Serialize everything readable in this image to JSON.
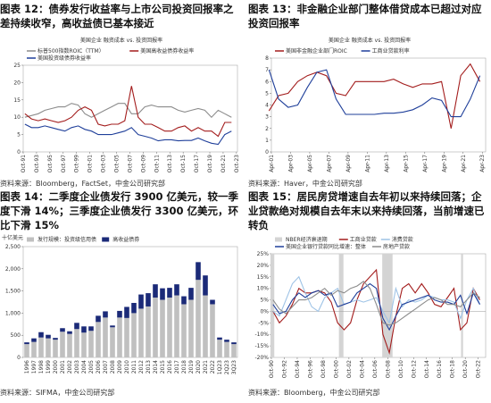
{
  "chart_data": [
    {
      "type": "line",
      "title": "图表 12：债券发行收益率与上市公司投资回报率之差持续收窄，高收益债已基本接近",
      "subtitle": "美国企业 融资成本 vs. 投资回报率",
      "source": "资料来源：Bloomberg，FactSet，中金公司研究部",
      "x": [
        1992,
        1993,
        1994,
        1995,
        1996,
        1997,
        1998,
        1999,
        2000,
        2001,
        2002,
        2003,
        2004,
        2005,
        2006,
        2007,
        2008,
        2009,
        2010,
        2011,
        2012,
        2013,
        2014,
        2015,
        2016,
        2017,
        2018,
        2019,
        2020,
        2021,
        2022,
        2023
      ],
      "xlim": [
        1991.75,
        2023.9
      ],
      "xticks": [
        {
          "value": 1991.75,
          "label": "Oct-91"
        },
        {
          "value": 1993.75,
          "label": "Oct-93"
        },
        {
          "value": 1995.75,
          "label": "Oct-95"
        },
        {
          "value": 1997.75,
          "label": "Oct-97"
        },
        {
          "value": 1999.75,
          "label": "Oct-99"
        },
        {
          "value": 2001.75,
          "label": "Oct-01"
        },
        {
          "value": 2003.75,
          "label": "Oct-03"
        },
        {
          "value": 2005.75,
          "label": "Oct-05"
        },
        {
          "value": 2007.75,
          "label": "Oct-07"
        },
        {
          "value": 2009.75,
          "label": "Oct-09"
        },
        {
          "value": 2011.75,
          "label": "Oct-11"
        },
        {
          "value": 2013.75,
          "label": "Oct-13"
        },
        {
          "value": 2015.75,
          "label": "Oct-15"
        },
        {
          "value": 2017.75,
          "label": "Oct-17"
        },
        {
          "value": 2019.75,
          "label": "Oct-19"
        },
        {
          "value": 2021.75,
          "label": "Oct-21"
        },
        {
          "value": 2023.75,
          "label": "Oct-23"
        }
      ],
      "ylim": [
        0,
        25
      ],
      "yticks": [
        0,
        5,
        10,
        15,
        20,
        25
      ],
      "series": [
        {
          "name": "标普500指数ROIC（TTM）",
          "color": "#8c8c8c",
          "values": [
            10,
            10.5,
            11,
            12,
            12.5,
            13,
            13,
            14,
            13.5,
            11,
            10,
            11,
            12,
            13,
            14,
            14,
            11,
            11,
            13,
            13.5,
            13,
            13,
            13,
            12,
            11.5,
            12,
            12.5,
            12,
            10,
            12,
            11,
            10
          ]
        },
        {
          "name": "美国高收益债券收益率",
          "color": "#a31c1c",
          "values": [
            11,
            9.5,
            9,
            9.5,
            9,
            8.5,
            9,
            10,
            12,
            13,
            12,
            8,
            7.5,
            8,
            8,
            9,
            19,
            10,
            8,
            8,
            7,
            6,
            6,
            7,
            7.5,
            6,
            7,
            6,
            6,
            4.5,
            8.5,
            8.5
          ]
        },
        {
          "name": "美国投资级债券收益率",
          "color": "#1f3f9a",
          "values": [
            8,
            7,
            7,
            7.5,
            7,
            6.5,
            6,
            7,
            7.5,
            6.5,
            6,
            5,
            5,
            5,
            5.5,
            6,
            7,
            5,
            4.5,
            4,
            3.2,
            3.5,
            3.5,
            3.2,
            3.3,
            3.3,
            4,
            3.2,
            2.5,
            2.2,
            5,
            6
          ]
        }
      ]
    },
    {
      "type": "line",
      "title": "图表 13：非金融企业部门整体借贷成本已超过对应投资回报率",
      "subtitle": "美国企业 融资成本 vs. 投资回报率",
      "source": "资料来源：Haver，中金公司研究部",
      "x": [
        2001,
        2002,
        2003,
        2004,
        2005,
        2006,
        2007,
        2008,
        2009,
        2010,
        2011,
        2012,
        2013,
        2014,
        2015,
        2016,
        2017,
        2018,
        2019,
        2020,
        2021,
        2022,
        2023
      ],
      "xlim": [
        2001.25,
        2023.6
      ],
      "xticks": [
        {
          "value": 2001.25,
          "label": "Apr-01"
        },
        {
          "value": 2003.25,
          "label": "Apr-03"
        },
        {
          "value": 2005.25,
          "label": "Apr-05"
        },
        {
          "value": 2007.25,
          "label": "Apr-07"
        },
        {
          "value": 2009.25,
          "label": "Apr-09"
        },
        {
          "value": 2011.25,
          "label": "Apr-11"
        },
        {
          "value": 2013.25,
          "label": "Apr-13"
        },
        {
          "value": 2015.25,
          "label": "Apr-15"
        },
        {
          "value": 2017.25,
          "label": "Apr-17"
        },
        {
          "value": 2019.25,
          "label": "Apr-19"
        },
        {
          "value": 2021.25,
          "label": "Apr-21"
        },
        {
          "value": 2023.25,
          "label": "Apr-23"
        }
      ],
      "ylim": [
        0,
        8
      ],
      "yticks": [
        0,
        1,
        2,
        3,
        4,
        5,
        6,
        7,
        8
      ],
      "series": [
        {
          "name": "美国非金融企业部门ROIC",
          "color": "#a31c1c",
          "values": [
            3.5,
            4.8,
            5,
            6,
            6.5,
            6.8,
            6.5,
            5,
            4.8,
            6,
            6,
            6,
            6,
            6.2,
            5.8,
            5.5,
            5.8,
            5.8,
            6,
            2,
            6.5,
            7.5,
            6
          ]
        },
        {
          "name": "工商业贷款利率",
          "color": "#1f3f9a",
          "values": [
            7,
            4.5,
            3.8,
            4,
            5.5,
            6.8,
            7,
            4.5,
            3.2,
            3.2,
            3.2,
            3.2,
            3.3,
            3.3,
            3.4,
            3.6,
            4,
            4.6,
            4.4,
            3,
            3,
            4.5,
            6.5
          ]
        }
      ]
    },
    {
      "type": "stacked_bar",
      "title": "图表 14：二季度企业债发行 3900 亿美元，较一季度下滑 14%；三季度企业债发行 3300 亿美元，环比下滑 15%",
      "ylabel": "十亿美元",
      "source": "资料来源：SIFMA，中金公司研究部",
      "categories": [
        "1996",
        "1997",
        "1998",
        "1999",
        "2000",
        "2001",
        "2002",
        "2003",
        "2004",
        "2005",
        "2006",
        "2007",
        "2008",
        "2009",
        "2010",
        "2011",
        "2012",
        "2013",
        "2014",
        "2015",
        "2016",
        "2017",
        "2018",
        "2019",
        "2020",
        "2021",
        "2022",
        "1Q23",
        "2Q23",
        "3Q23"
      ],
      "ylim": [
        0,
        2500
      ],
      "yticks": [
        0,
        500,
        {
          "value": 1000,
          "label": "1,000"
        },
        {
          "value": 1500,
          "label": "1,500"
        },
        {
          "value": 2000,
          "label": "2,000"
        },
        {
          "value": 2500,
          "label": "2,500"
        }
      ],
      "series": [
        {
          "name": "发行规模：投资级信用债",
          "color": "#c0c0c0",
          "values": [
            300,
            350,
            450,
            430,
            400,
            580,
            530,
            640,
            560,
            600,
            800,
            900,
            680,
            900,
            890,
            1000,
            1100,
            1150,
            1350,
            1300,
            1350,
            1400,
            1200,
            1300,
            1750,
            1400,
            1200,
            400,
            350,
            300
          ]
        },
        {
          "name": "高收益债券",
          "color": "#1b2a78",
          "values": [
            40,
            80,
            120,
            80,
            40,
            80,
            60,
            140,
            140,
            100,
            140,
            140,
            40,
            150,
            250,
            230,
            320,
            300,
            300,
            260,
            220,
            250,
            180,
            270,
            400,
            450,
            100,
            50,
            50,
            40
          ]
        }
      ]
    },
    {
      "type": "line",
      "title": "图表 15：居民房贷增速自去年初以来持续回落；企业贷款绝对规模自去年末以来持续回落，当前增速已转负",
      "source": "资料来源：Bloomberg，中金公司研究部",
      "shading": {
        "name": "NBER经济衰退期",
        "color": "#d4d4d4",
        "spans": [
          [
            1990.6,
            1991.2
          ],
          [
            2001.2,
            2001.9
          ],
          [
            2007.9,
            2009.5
          ],
          [
            2020.1,
            2020.4
          ]
        ]
      },
      "x": [
        1991,
        1992,
        1993,
        1994,
        1995,
        1996,
        1997,
        1998,
        1999,
        2000,
        2001,
        2002,
        2003,
        2004,
        2005,
        2006,
        2007,
        2008,
        2009,
        2010,
        2011,
        2012,
        2013,
        2014,
        2015,
        2016,
        2017,
        2018,
        2019,
        2020,
        2021,
        2022,
        2023
      ],
      "xlim": [
        1990.75,
        2023.9
      ],
      "xticks": [
        {
          "value": 1990.75,
          "label": "Oct-90"
        },
        {
          "value": 1992.75,
          "label": "Oct-92"
        },
        {
          "value": 1994.75,
          "label": "Oct-94"
        },
        {
          "value": 1996.75,
          "label": "Oct-96"
        },
        {
          "value": 1998.75,
          "label": "Oct-98"
        },
        {
          "value": 2000.75,
          "label": "Oct-00"
        },
        {
          "value": 2002.75,
          "label": "Oct-02"
        },
        {
          "value": 2004.75,
          "label": "Oct-04"
        },
        {
          "value": 2006.75,
          "label": "Oct-06"
        },
        {
          "value": 2008.75,
          "label": "Oct-08"
        },
        {
          "value": 2010.75,
          "label": "Oct-10"
        },
        {
          "value": 2012.75,
          "label": "Oct-12"
        },
        {
          "value": 2014.75,
          "label": "Oct-14"
        },
        {
          "value": 2016.75,
          "label": "Oct-16"
        },
        {
          "value": 2018.75,
          "label": "Oct-18"
        },
        {
          "value": 2020.75,
          "label": "Oct-20"
        },
        {
          "value": 2022.75,
          "label": "Oct-22"
        }
      ],
      "ylim": [
        -20,
        25
      ],
      "yticks": [
        {
          "value": 25,
          "label": "25%"
        },
        {
          "value": 20,
          "label": "20%"
        },
        {
          "value": 15,
          "label": "15%"
        },
        {
          "value": 10,
          "label": "10%"
        },
        {
          "value": 5,
          "label": "5%"
        },
        {
          "value": 0,
          "label": "0%"
        },
        {
          "value": -5,
          "label": "-5%"
        },
        {
          "value": -10,
          "label": "-10%"
        },
        {
          "value": -15,
          "label": "-15%"
        },
        {
          "value": -20,
          "label": "-20%"
        }
      ],
      "series": [
        {
          "name": "工商业贷款",
          "color": "#a31c1c",
          "values": [
            0,
            -5,
            -2,
            3,
            10,
            8,
            8,
            9,
            8,
            4,
            -5,
            -8,
            -5,
            5,
            12,
            15,
            18,
            -10,
            -18,
            -2,
            10,
            12,
            8,
            12,
            8,
            3,
            2,
            6,
            10,
            -8,
            -5,
            10,
            5
          ]
        },
        {
          "name": "消费贷款",
          "color": "#9ec3e6",
          "values": [
            0,
            -2,
            5,
            12,
            15,
            8,
            2,
            0,
            6,
            8,
            10,
            3,
            4,
            5,
            4,
            5,
            6,
            0,
            -5,
            10,
            2,
            5,
            4,
            5,
            7,
            6,
            5,
            5,
            4,
            -3,
            5,
            10,
            3
          ]
        },
        {
          "name": "美国企业银行贷款同比增速：整体",
          "color": "#1f3f9a",
          "values": [
            3,
            -1,
            0,
            5,
            8,
            6,
            8,
            9,
            7,
            8,
            2,
            3,
            4,
            8,
            10,
            12,
            10,
            -3,
            -8,
            -2,
            3,
            4,
            5,
            6,
            7,
            5,
            4,
            4,
            3,
            7,
            -1,
            8,
            3
          ]
        },
        {
          "name": "房地产贷款",
          "color": "#8c8c8c",
          "values": [
            5,
            1,
            -1,
            2,
            5,
            5,
            6,
            8,
            10,
            7,
            9,
            8,
            10,
            11,
            13,
            10,
            3,
            -5,
            -6,
            -5,
            -3,
            -1,
            1,
            3,
            5,
            6,
            5,
            3,
            3,
            2,
            5,
            8,
            6
          ]
        }
      ]
    }
  ]
}
